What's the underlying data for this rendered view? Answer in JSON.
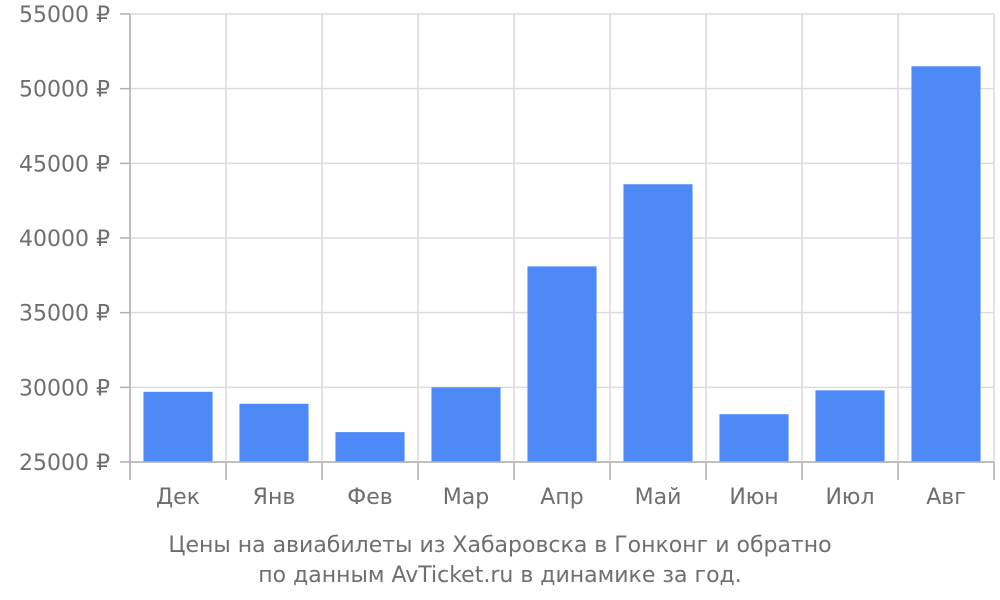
{
  "chart_data": {
    "type": "bar",
    "categories": [
      "Дек",
      "Янв",
      "Фев",
      "Мар",
      "Апр",
      "Май",
      "Июн",
      "Июл",
      "Авг"
    ],
    "values": [
      29700,
      28900,
      27000,
      30000,
      38100,
      43600,
      28200,
      29800,
      51500
    ],
    "ylim": [
      25000,
      55000
    ],
    "yticks": [
      25000,
      30000,
      35000,
      40000,
      45000,
      50000,
      55000
    ],
    "ytick_labels": [
      "25000 ₽",
      "30000 ₽",
      "35000 ₽",
      "40000 ₽",
      "45000 ₽",
      "50000 ₽",
      "55000 ₽"
    ],
    "grid": true,
    "bar_color": "#4d8af8",
    "grid_color": "#dcdcdc",
    "axis_color": "#b0b0b0",
    "text_color": "#6e6e6e"
  },
  "caption": {
    "line1": "Цены на авиабилеты из Хабаровска в Гонконг и обратно",
    "line2": "по данным AvTicket.ru в динамике за год."
  }
}
